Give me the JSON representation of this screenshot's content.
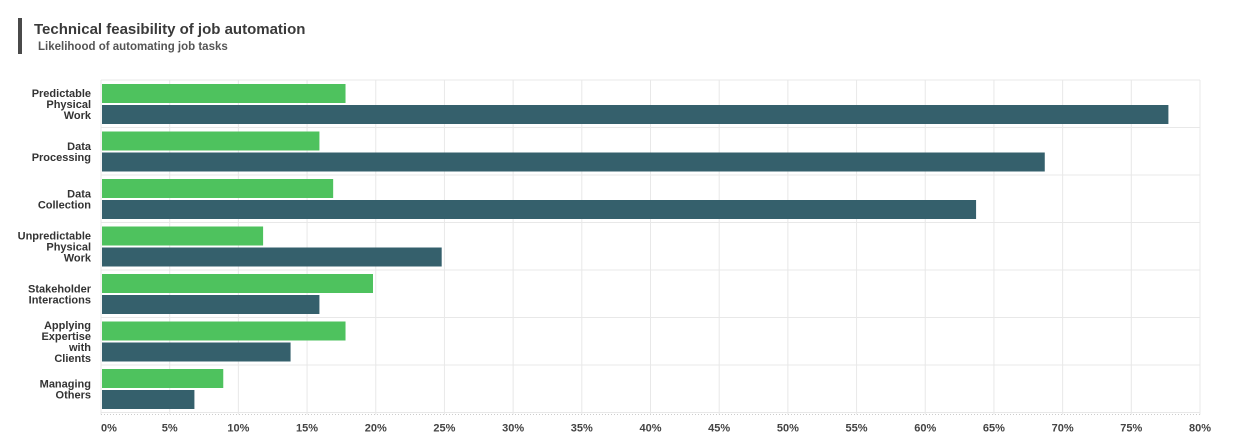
{
  "header": {
    "title": "Technical feasibility of job automation",
    "subtitle": "Likelihood of automating job tasks"
  },
  "colors": {
    "series_a": "#4ec25e",
    "series_b": "#35606c",
    "grid": "#e8e8e8",
    "title_bar": "#4a4a4a"
  },
  "chart_data": {
    "type": "bar",
    "orientation": "horizontal",
    "title": "Technical feasibility of job automation",
    "subtitle": "Likelihood of automating job tasks",
    "categories": [
      [
        "Predictable",
        "Physical",
        "Work"
      ],
      [
        "Data",
        "Processing"
      ],
      [
        "Data",
        "Collection"
      ],
      [
        "Unpredictable",
        "Physical",
        "Work"
      ],
      [
        "Stakeholder",
        "Interactions"
      ],
      [
        "Applying",
        "Expertise",
        "with",
        "Clients"
      ],
      [
        "Managing",
        "Others"
      ]
    ],
    "series": [
      {
        "color": "#4ec25e",
        "values": [
          17.8,
          15.9,
          16.9,
          11.8,
          19.8,
          17.8,
          8.9
        ]
      },
      {
        "color": "#35606c",
        "values": [
          77.7,
          68.7,
          63.7,
          24.8,
          15.9,
          13.8,
          6.8
        ]
      }
    ],
    "xlim": [
      0,
      80
    ],
    "xticks": [
      "0%",
      "5%",
      "10%",
      "15%",
      "20%",
      "25%",
      "30%",
      "35%",
      "40%",
      "45%",
      "50%",
      "55%",
      "60%",
      "65%",
      "70%",
      "75%",
      "80%"
    ],
    "grid": true,
    "legend": "none"
  }
}
